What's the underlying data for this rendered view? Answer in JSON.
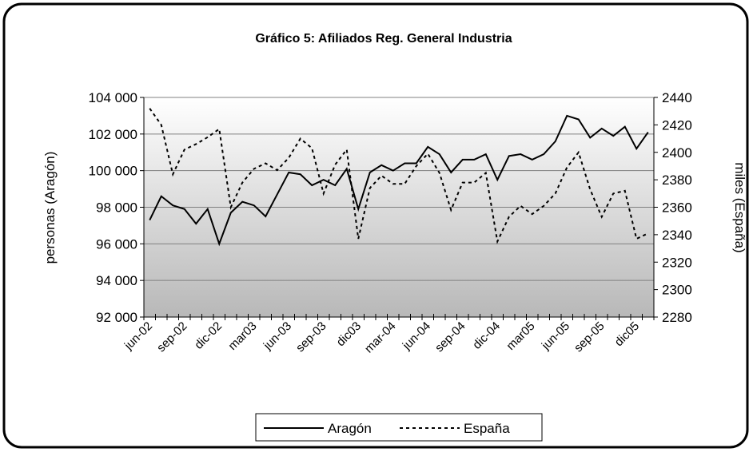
{
  "chart_data": {
    "type": "line",
    "title": "Gráfico 5: Afiliados Reg. General Industria",
    "y_label": "personas (Aragón)",
    "y2_label": "miles (España)",
    "categories": [
      "jun-02",
      null,
      null,
      "sep-02",
      null,
      null,
      "dic-02",
      null,
      null,
      "mar03",
      null,
      null,
      "jun-03",
      null,
      null,
      "sep-03",
      null,
      null,
      "dic03",
      null,
      null,
      "mar-04",
      null,
      null,
      "jun-04",
      null,
      null,
      "sep-04",
      null,
      null,
      "dic-04",
      null,
      null,
      "mar05",
      null,
      null,
      "jun-05",
      null,
      null,
      "sep-05",
      null,
      null,
      "dic05",
      null
    ],
    "ylim": [
      92000,
      104000
    ],
    "yticks": [
      {
        "value": 92000,
        "label": "92 000"
      },
      {
        "value": 94000,
        "label": "94 000"
      },
      {
        "value": 96000,
        "label": "96 000"
      },
      {
        "value": 98000,
        "label": "98 000"
      },
      {
        "value": 100000,
        "label": "100 000"
      },
      {
        "value": 102000,
        "label": "102 000"
      },
      {
        "value": 104000,
        "label": "104 000"
      }
    ],
    "y2lim": [
      2280,
      2440
    ],
    "y2ticks": [
      2280,
      2300,
      2320,
      2340,
      2360,
      2380,
      2400,
      2420,
      2440
    ],
    "grid": true,
    "legend": "bottom",
    "series": [
      {
        "name": "Aragón",
        "color": "#000000",
        "dash": "solid",
        "values": [
          97300,
          98600,
          98100,
          97900,
          97100,
          97900,
          96000,
          97700,
          98300,
          98100,
          97500,
          98700,
          99900,
          99800,
          99200,
          99500,
          99200,
          100100,
          97900,
          99900,
          100300,
          100000,
          100400,
          100400,
          101300,
          100900,
          99900,
          100600,
          100600,
          100900,
          99500,
          100800,
          100900,
          100600,
          100900,
          101600,
          103000,
          102800,
          101800,
          102300,
          101900,
          102400,
          101200,
          102100
        ]
      },
      {
        "name": "España",
        "color": "#000000",
        "dash": "dotted",
        "axis": "y2",
        "values": [
          2432,
          2420,
          2384,
          2402,
          2406,
          2411,
          2417,
          2360,
          2378,
          2388,
          2392,
          2387,
          2396,
          2410,
          2403,
          2370,
          2391,
          2402,
          2337,
          2374,
          2383,
          2377,
          2377,
          2390,
          2399,
          2385,
          2358,
          2378,
          2378,
          2385,
          2335,
          2353,
          2361,
          2355,
          2361,
          2370,
          2389,
          2400,
          2373,
          2353,
          2370,
          2372,
          2337,
          2341
        ]
      }
    ]
  }
}
